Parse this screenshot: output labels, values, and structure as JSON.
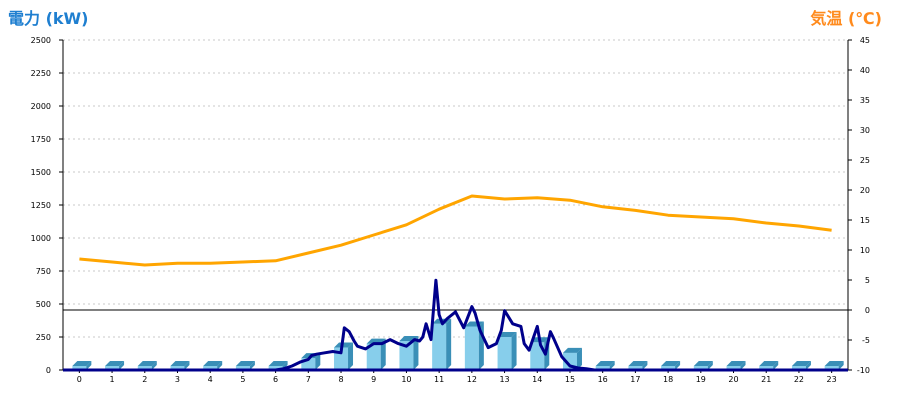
{
  "colors": {
    "left_title": "#1f7fd0",
    "right_title": "#ff8a1c",
    "power_line": "#00008b",
    "temp_line": "#ffa500",
    "bar_front": "#87ceeb",
    "bar_side": "#3a8fb7",
    "grid": "#c8c8c8"
  },
  "chart_data": {
    "type": "bar",
    "title_left": "電力 (kW)",
    "title_right": "気温 (℃)",
    "categories": [
      "0",
      "1",
      "2",
      "3",
      "4",
      "5",
      "6",
      "7",
      "8",
      "9",
      "10",
      "11",
      "12",
      "13",
      "14",
      "15",
      "16",
      "17",
      "18",
      "19",
      "20",
      "21",
      "22",
      "23"
    ],
    "y_left": {
      "min": 0,
      "max": 2500,
      "ticks": [
        0,
        250,
        500,
        750,
        1000,
        1250,
        1500,
        1750,
        2000,
        2250,
        2500
      ]
    },
    "y_right": {
      "min": -10,
      "max": 45,
      "ticks": [
        -10,
        -5,
        0,
        5,
        10,
        15,
        20,
        25,
        30,
        35,
        40,
        45
      ]
    },
    "grid": true,
    "series": [
      {
        "kind": "bar",
        "axis": "left",
        "values": [
          0,
          0,
          0,
          0,
          0,
          0,
          0,
          90,
          170,
          200,
          220,
          350,
          330,
          250,
          210,
          130,
          0,
          0,
          0,
          0,
          0,
          0,
          0,
          0
        ]
      },
      {
        "kind": "line",
        "axis": "left",
        "x": [
          6,
          6.25,
          6.5,
          6.75,
          7,
          7.1,
          7.25,
          7.5,
          7.75,
          8,
          8.1,
          8.25,
          8.4,
          8.5,
          8.75,
          9,
          9.25,
          9.5,
          9.75,
          10,
          10.25,
          10.4,
          10.5,
          10.6,
          10.75,
          10.9,
          11,
          11.1,
          11.25,
          11.5,
          11.75,
          12,
          12.1,
          12.25,
          12.5,
          12.75,
          12.9,
          13,
          13.25,
          13.5,
          13.6,
          13.75,
          14,
          14.1,
          14.25,
          14.4,
          14.5,
          14.75,
          15,
          15.25,
          15.5,
          15.75,
          16
        ],
        "y": [
          0,
          10,
          30,
          60,
          80,
          110,
          120,
          130,
          140,
          130,
          320,
          290,
          220,
          180,
          160,
          200,
          200,
          230,
          200,
          180,
          230,
          220,
          250,
          350,
          230,
          680,
          420,
          350,
          390,
          440,
          320,
          480,
          430,
          300,
          170,
          200,
          300,
          450,
          350,
          330,
          200,
          150,
          330,
          190,
          120,
          290,
          240,
          100,
          30,
          15,
          10,
          0,
          0
        ]
      },
      {
        "kind": "line",
        "axis": "right",
        "x": [
          0,
          1,
          2,
          3,
          4,
          5,
          6,
          7,
          8,
          9,
          10,
          11,
          12,
          13,
          14,
          15,
          16,
          17,
          18,
          19,
          20,
          21,
          22,
          23
        ],
        "y": [
          8.5,
          8,
          7.5,
          7.8,
          7.8,
          8,
          8.2,
          9.5,
          10.8,
          12.5,
          14.2,
          16.8,
          19,
          18.5,
          18.7,
          18.3,
          17.2,
          16.6,
          15.8,
          15.5,
          15.2,
          14.5,
          14,
          13.3
        ]
      }
    ],
    "reference_line": {
      "axis": "right",
      "value": 0
    }
  }
}
